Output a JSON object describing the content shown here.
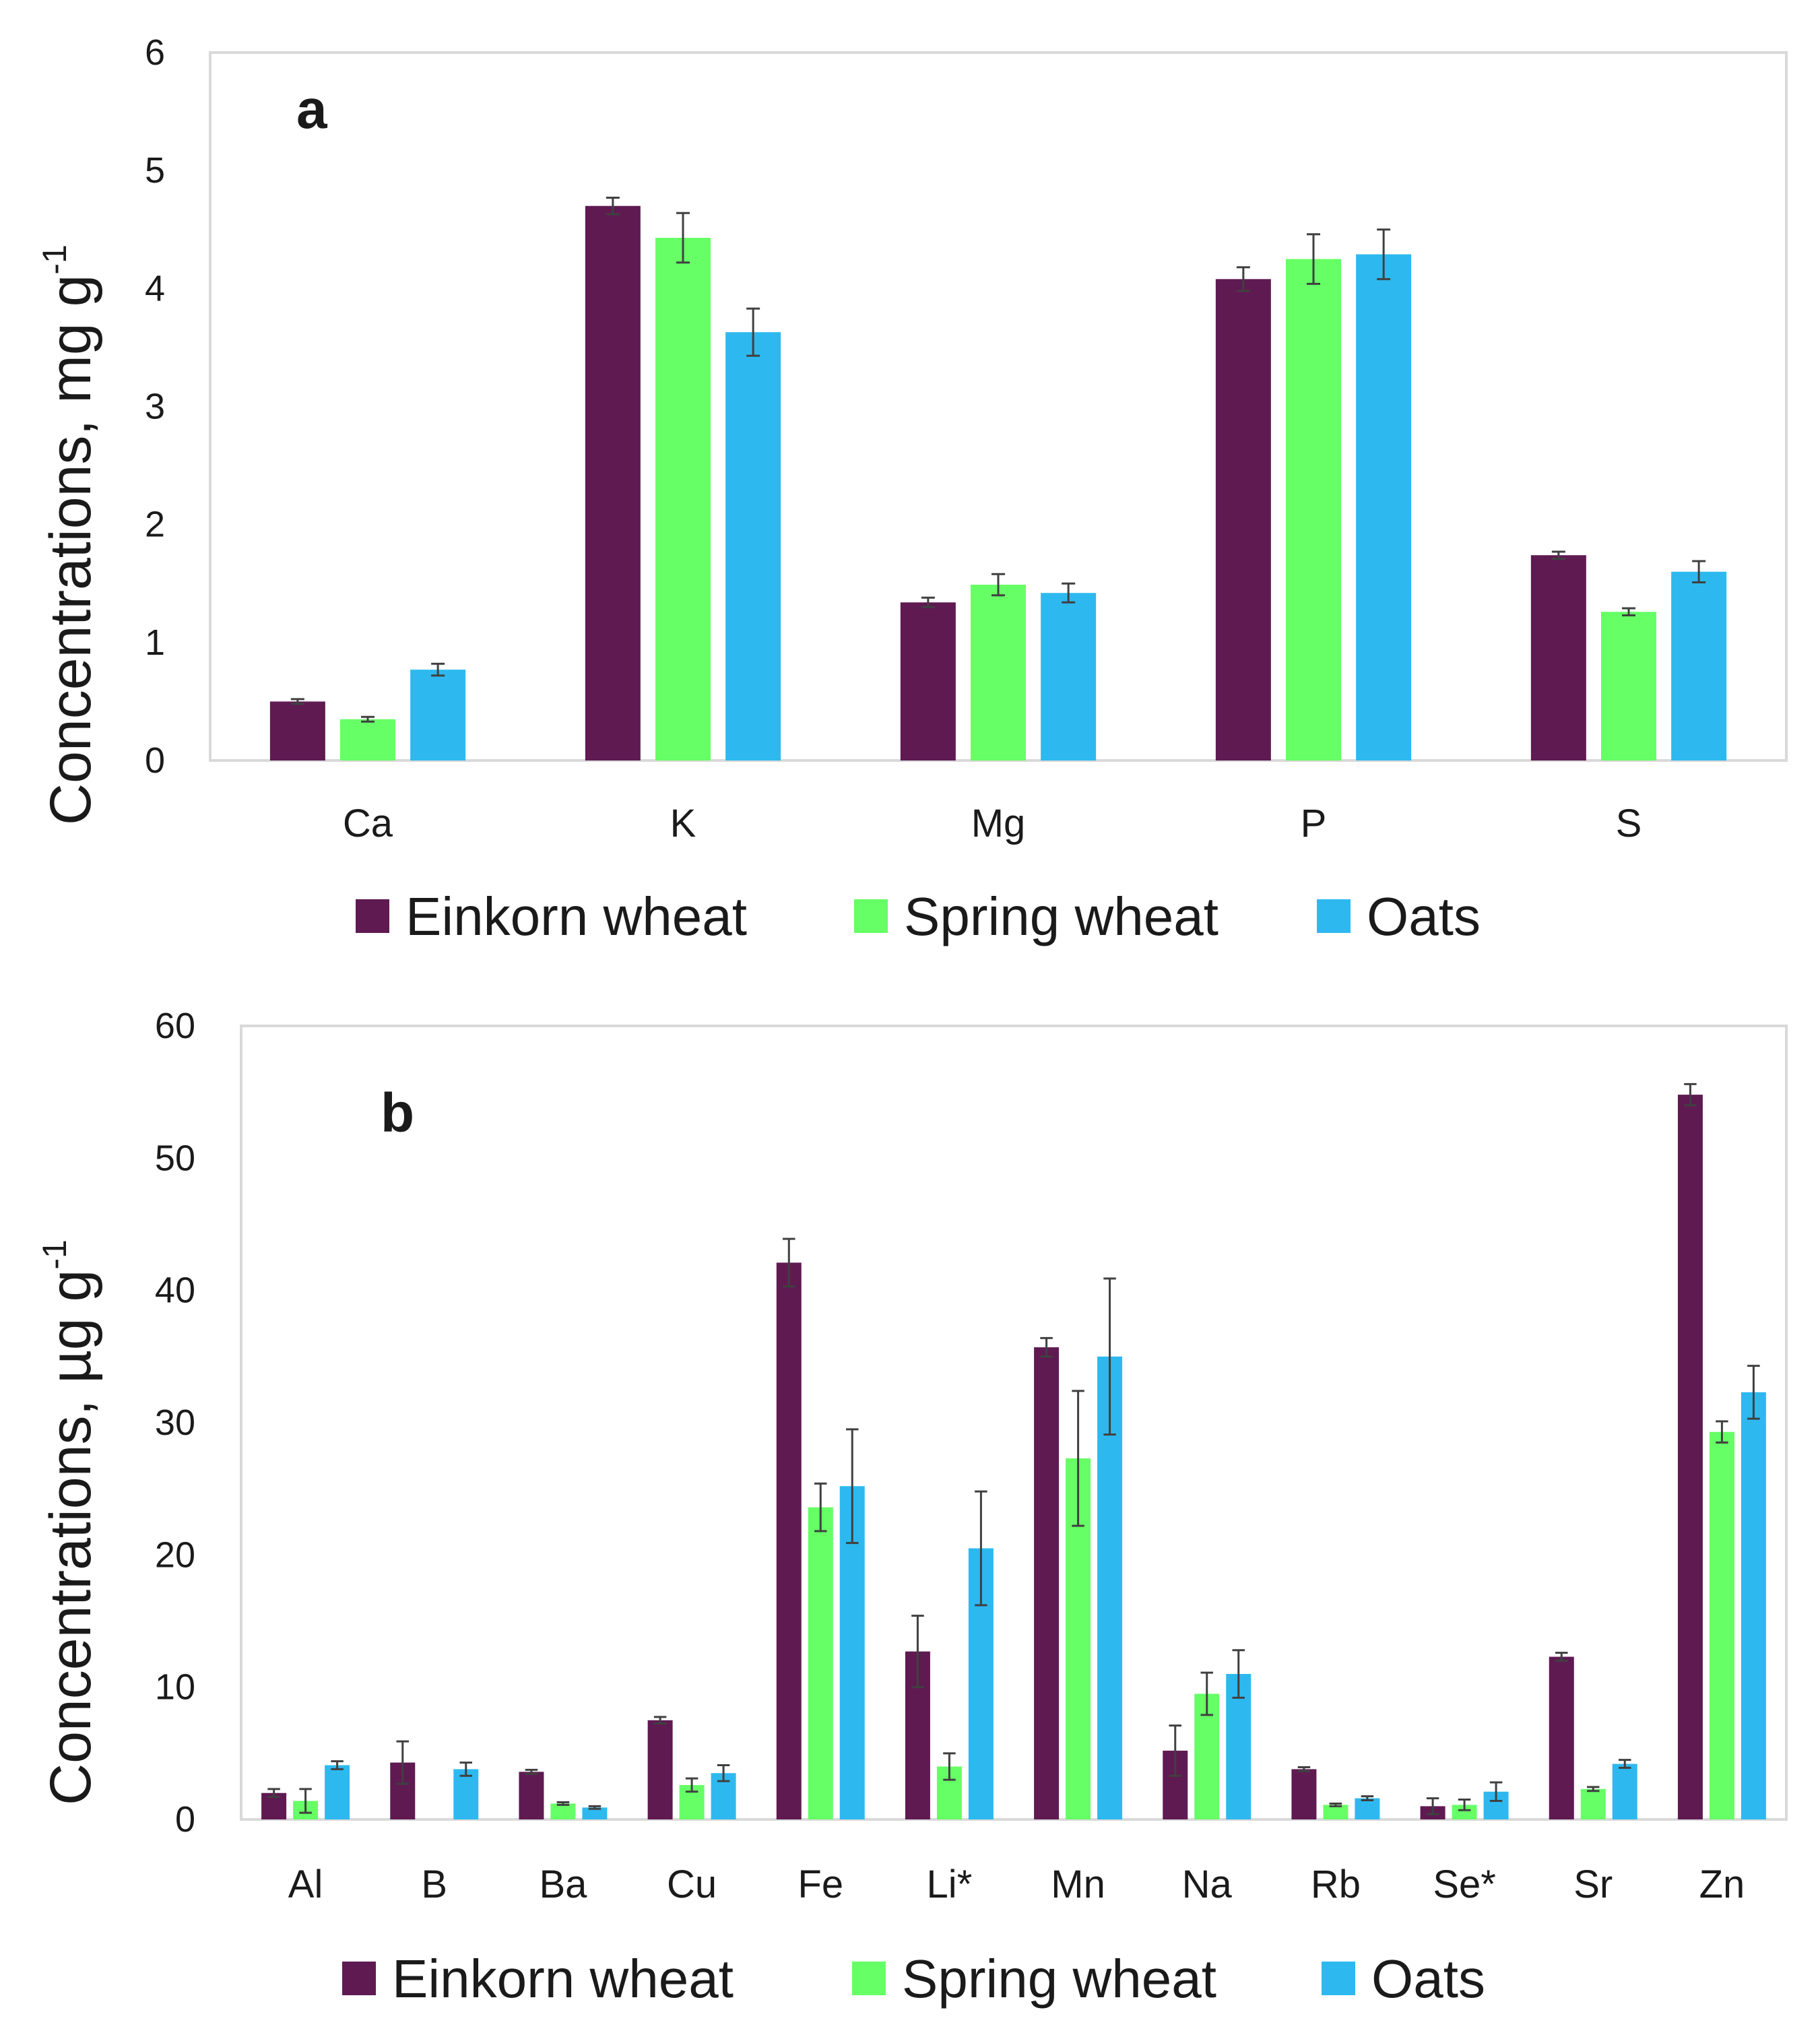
{
  "colors": {
    "einkorn": "#5f1a52",
    "spring": "#66ff66",
    "oats": "#2db9ef"
  },
  "chart_data": [
    {
      "type": "bar",
      "panel_label": "a",
      "ylabel_main": "Concentrations, mg g",
      "ylabel_sup": "-1",
      "ylim": [
        0,
        6
      ],
      "yticks": [
        "0",
        "1",
        "2",
        "3",
        "4",
        "5",
        "6"
      ],
      "grid": false,
      "legend_position": "bottom",
      "categories": [
        "Ca",
        "K",
        "Mg",
        "P",
        "S"
      ],
      "series": [
        {
          "name": "Einkorn wheat",
          "color_key": "einkorn",
          "values": [
            0.5,
            4.7,
            1.34,
            4.08,
            1.74
          ],
          "errors": [
            0.02,
            0.07,
            0.04,
            0.1,
            0.03
          ]
        },
        {
          "name": "Spring wheat",
          "color_key": "spring",
          "values": [
            0.35,
            4.43,
            1.49,
            4.25,
            1.26
          ],
          "errors": [
            0.02,
            0.21,
            0.09,
            0.21,
            0.03
          ]
        },
        {
          "name": "Oats",
          "color_key": "oats",
          "values": [
            0.77,
            3.63,
            1.42,
            4.29,
            1.6
          ],
          "errors": [
            0.05,
            0.2,
            0.08,
            0.21,
            0.09
          ]
        }
      ]
    },
    {
      "type": "bar",
      "panel_label": "b",
      "ylabel_main": "Concentrations, µg g",
      "ylabel_sup": "-1",
      "ylim": [
        0,
        60
      ],
      "yticks": [
        "0",
        "10",
        "20",
        "30",
        "40",
        "50",
        "60"
      ],
      "grid": false,
      "legend_position": "bottom",
      "categories": [
        "Al",
        "B",
        "Ba",
        "Cu",
        "Fe",
        "Li*",
        "Mn",
        "Na",
        "Rb",
        "Se*",
        "Sr",
        "Zn"
      ],
      "series": [
        {
          "name": "Einkorn wheat",
          "color_key": "einkorn",
          "values": [
            2.0,
            4.3,
            3.6,
            7.5,
            42.1,
            12.7,
            35.7,
            5.2,
            3.8,
            1.0,
            12.3,
            54.8
          ],
          "errors": [
            0.3,
            1.6,
            0.15,
            0.25,
            1.8,
            2.7,
            0.7,
            1.9,
            0.15,
            0.6,
            0.3,
            0.8
          ]
        },
        {
          "name": "Spring wheat",
          "color_key": "spring",
          "values": [
            1.4,
            0.0,
            1.2,
            2.6,
            23.6,
            4.0,
            27.3,
            9.5,
            1.1,
            1.1,
            2.3,
            29.3
          ],
          "errors": [
            0.9,
            0.0,
            0.1,
            0.5,
            1.8,
            1.0,
            5.1,
            1.6,
            0.1,
            0.4,
            0.15,
            0.8
          ]
        },
        {
          "name": "Oats",
          "color_key": "oats",
          "values": [
            4.1,
            3.8,
            0.9,
            3.5,
            25.2,
            20.5,
            35.0,
            11.0,
            1.6,
            2.1,
            4.2,
            32.3
          ],
          "errors": [
            0.3,
            0.5,
            0.1,
            0.6,
            4.3,
            4.3,
            5.9,
            1.8,
            0.15,
            0.7,
            0.3,
            2.0
          ]
        }
      ]
    }
  ]
}
